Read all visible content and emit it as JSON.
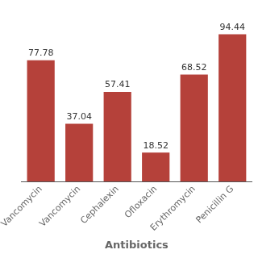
{
  "chart_data": {
    "type": "bar",
    "xlabel": "Antibiotics",
    "categories": [
      "Vancomycin",
      "Vancomycin",
      "Cephalexin",
      "Ofloxacin",
      "Erythromycin",
      "Penicillin G"
    ],
    "values": [
      77.78,
      37.04,
      57.41,
      18.52,
      68.52,
      94.44
    ],
    "color": "#b5413a",
    "ylim": [
      0,
      105
    ],
    "grid": false,
    "data_labels": true,
    "tick_labels": "x"
  }
}
